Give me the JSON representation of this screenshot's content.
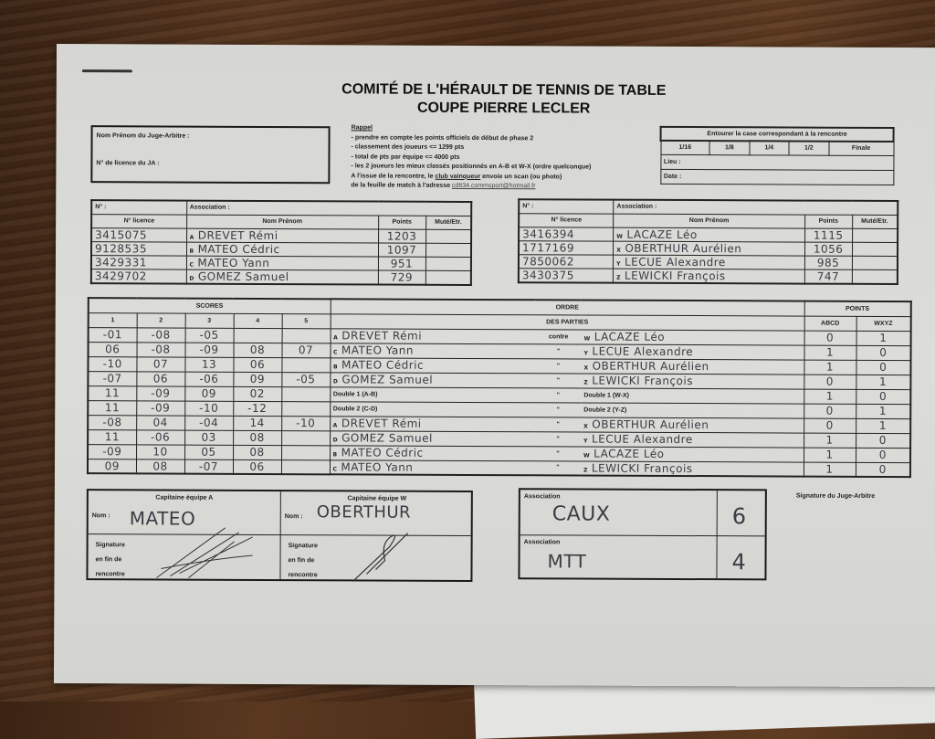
{
  "header": {
    "title": "COMITÉ DE L'HÉRAULT DE TENNIS DE TABLE",
    "subtitle": "COUPE PIERRE LECLER"
  },
  "judge": {
    "name_label": "Nom Prénom du Juge-Arbitre :",
    "licence_label": "N° de licence du JA :"
  },
  "rappel": {
    "title": "Rappel",
    "lines": [
      "- prendre en compte les points officiels de début de phase 2",
      "- classement des joueurs <= 1299 pts",
      "- total de pts par équipe <= 4000 pts",
      "- les 2 joueurs les mieux classés positionnés en A-B et W-X (ordre quelconque)"
    ],
    "footer1_a": "A l'issue de la rencontre, le ",
    "footer1_link": "club vainqueur",
    "footer1_b": " envoie un scan (ou photo)",
    "footer2": "de la feuille de match à l'adresse ",
    "email": "cdtt34.commsport@hotmail.fr"
  },
  "round": {
    "instruction": "Entourer la case correspondant à la rencontre",
    "options": [
      "1/16",
      "1/8",
      "1/4",
      "1/2",
      "Finale"
    ],
    "lieu_label": "Lieu :",
    "date_label": "Date :"
  },
  "team_a": {
    "no_label": "N° :",
    "assoc_label": "Association :",
    "cols": [
      "N° licence",
      "Nom Prénom",
      "Points",
      "Muté/Etr."
    ],
    "players": [
      {
        "licence": "3415075",
        "letter": "A",
        "name": "DREVET Rémi",
        "points": "1203"
      },
      {
        "licence": "9128535",
        "letter": "B",
        "name": "MATEO Cédric",
        "points": "1097"
      },
      {
        "licence": "3429331",
        "letter": "C",
        "name": "MATEO Yann",
        "points": "951"
      },
      {
        "licence": "3429702",
        "letter": "D",
        "name": "GOMEZ Samuel",
        "points": "729"
      }
    ]
  },
  "team_w": {
    "no_label": "N° :",
    "assoc_label": "Association :",
    "cols": [
      "N° licence",
      "Nom Prénom",
      "Points",
      "Muté/Etr."
    ],
    "players": [
      {
        "licence": "3416394",
        "letter": "W",
        "name": "LACAZE Léo",
        "points": "1115"
      },
      {
        "licence": "1717169",
        "letter": "X",
        "name": "OBERTHUR Aurélien",
        "points": "1056"
      },
      {
        "licence": "7850062",
        "letter": "Y",
        "name": "LECUE Alexandre",
        "points": "985"
      },
      {
        "licence": "3430375",
        "letter": "Z",
        "name": "LEWICKI François",
        "points": "747"
      }
    ]
  },
  "scores": {
    "title": "SCORES",
    "sets": [
      "1",
      "2",
      "3",
      "4",
      "5"
    ],
    "order_title": "ORDRE",
    "order_sub": "DES PARTIES",
    "points_title": "POINTS",
    "points_cols": [
      "ABCD",
      "WXYZ"
    ],
    "vs_label": "contre",
    "ditto": "\"",
    "rows": [
      {
        "sets": [
          "-01",
          "-08",
          "-05",
          "",
          ""
        ],
        "l": "A",
        "left": "DREVET Rémi",
        "r": "W",
        "right": "LACAZE Léo",
        "pa": "0",
        "pw": "1",
        "vs": "contre"
      },
      {
        "sets": [
          "06",
          "-08",
          "-09",
          "08",
          "07"
        ],
        "l": "C",
        "left": "MATEO Yann",
        "r": "Y",
        "right": "LECUE Alexandre",
        "pa": "1",
        "pw": "0"
      },
      {
        "sets": [
          "-10",
          "07",
          "13",
          "06",
          ""
        ],
        "l": "B",
        "left": "MATEO Cédric",
        "r": "X",
        "right": "OBERTHUR Aurélien",
        "pa": "1",
        "pw": "0"
      },
      {
        "sets": [
          "-07",
          "06",
          "-06",
          "09",
          "-05"
        ],
        "l": "D",
        "left": "GOMEZ Samuel",
        "r": "Z",
        "right": "LEWICKI François",
        "pa": "0",
        "pw": "1"
      },
      {
        "sets": [
          "11",
          "-09",
          "09",
          "02",
          ""
        ],
        "l": "",
        "left": "Double 1 (A-B)",
        "r": "",
        "right": "Double 1 (W-X)",
        "pa": "1",
        "pw": "0",
        "printed": true
      },
      {
        "sets": [
          "11",
          "-09",
          "-10",
          "-12",
          ""
        ],
        "l": "",
        "left": "Double 2 (C-D)",
        "r": "",
        "right": "Double 2 (Y-Z)",
        "pa": "0",
        "pw": "1",
        "printed": true
      },
      {
        "sets": [
          "-08",
          "04",
          "-04",
          "14",
          "-10"
        ],
        "l": "A",
        "left": "DREVET Rémi",
        "r": "X",
        "right": "OBERTHUR Aurélien",
        "pa": "0",
        "pw": "1"
      },
      {
        "sets": [
          "11",
          "-06",
          "03",
          "08",
          ""
        ],
        "l": "D",
        "left": "GOMEZ Samuel",
        "r": "Y",
        "right": "LECUE Alexandre",
        "pa": "1",
        "pw": "0"
      },
      {
        "sets": [
          "-09",
          "10",
          "05",
          "08",
          ""
        ],
        "l": "B",
        "left": "MATEO Cédric",
        "r": "W",
        "right": "LACAZE Léo",
        "pa": "1",
        "pw": "0"
      },
      {
        "sets": [
          "09",
          "08",
          "-07",
          "06",
          ""
        ],
        "l": "C",
        "left": "MATEO Yann",
        "r": "Z",
        "right": "LEWICKI François",
        "pa": "1",
        "pw": "0"
      }
    ]
  },
  "captains": {
    "a_title": "Capitaine équipe A",
    "w_title": "Capitaine équipe W",
    "nom_label": "Nom :",
    "a_name": "MATEO",
    "w_name": "OBERTHUR",
    "sig_label": [
      "Signature",
      "en fin de",
      "rencontre"
    ]
  },
  "result": {
    "assoc_label": "Association",
    "team1": "CAUX",
    "score1": "6",
    "team2": "MTT",
    "score2": "4"
  },
  "judge_signature_label": "Signature du Juge-Arbitre"
}
